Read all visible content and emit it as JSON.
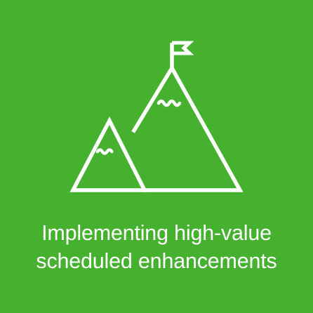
{
  "tile": {
    "caption_line1": "Implementing high-value",
    "caption_line2": "scheduled enhancements",
    "icon": "mountain-summit-flag-icon"
  },
  "colors": {
    "background": "#46b12f",
    "foreground": "#ffffff"
  }
}
